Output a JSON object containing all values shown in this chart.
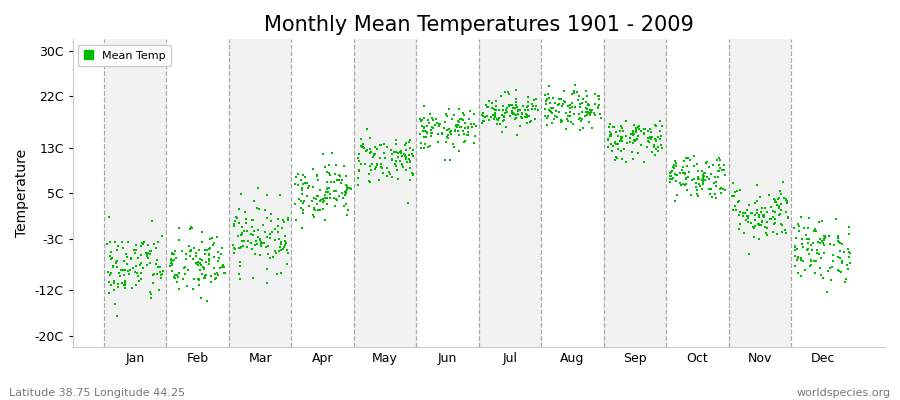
{
  "title": "Monthly Mean Temperatures 1901 - 2009",
  "ylabel": "Temperature",
  "yticks": [
    -20,
    -12,
    -3,
    5,
    13,
    22,
    30
  ],
  "ytick_labels": [
    "-20C",
    "-12C",
    "-3C",
    "5C",
    "13C",
    "22C",
    "30C"
  ],
  "ylim": [
    -22,
    32
  ],
  "xlim": [
    0.5,
    13.5
  ],
  "months": [
    "Jan",
    "Feb",
    "Mar",
    "Apr",
    "May",
    "Jun",
    "Jul",
    "Aug",
    "Sep",
    "Oct",
    "Nov",
    "Dec"
  ],
  "month_means": [
    -8.0,
    -7.5,
    -2.5,
    5.5,
    11.0,
    16.0,
    19.5,
    19.5,
    14.5,
    8.0,
    1.5,
    -5.0
  ],
  "month_stds": [
    3.2,
    3.0,
    3.0,
    2.5,
    2.2,
    1.8,
    1.5,
    1.7,
    1.8,
    2.0,
    2.5,
    2.8
  ],
  "n_years": 109,
  "dot_color": "#00bb00",
  "dot_size": 3,
  "background_colors": [
    "#f2f2f2",
    "#ffffff"
  ],
  "grid_color": "#888888",
  "title_fontsize": 15,
  "label_fontsize": 10,
  "tick_fontsize": 9,
  "subtitle_left": "Latitude 38.75 Longitude 44.25",
  "subtitle_right": "worldspecies.org",
  "legend_label": "Mean Temp",
  "seed": 42
}
